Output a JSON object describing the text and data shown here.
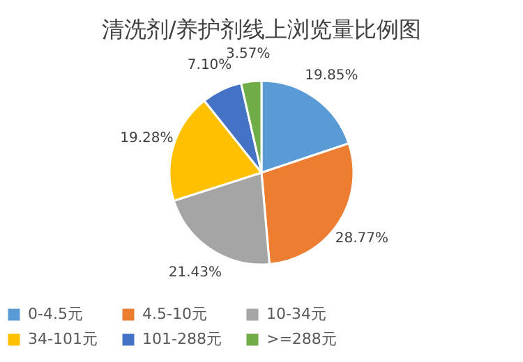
{
  "chart_data": {
    "type": "pie",
    "title": "清洗剂/养护剂线上浏览量比例图",
    "categories": [
      "0-4.5元",
      "4.5-10元",
      "10-34元",
      "34-101元",
      "101-288元",
      ">=288元"
    ],
    "values": [
      19.85,
      28.77,
      21.43,
      19.28,
      7.1,
      3.57
    ],
    "colors": [
      "#5b9bd5",
      "#ed7d31",
      "#a5a5a5",
      "#ffc000",
      "#4472c4",
      "#70ad47"
    ],
    "value_labels": [
      "19.85%",
      "28.77%",
      "21.43%",
      "19.28%",
      "7.10%",
      "3.57%"
    ],
    "legend": "bottom"
  }
}
